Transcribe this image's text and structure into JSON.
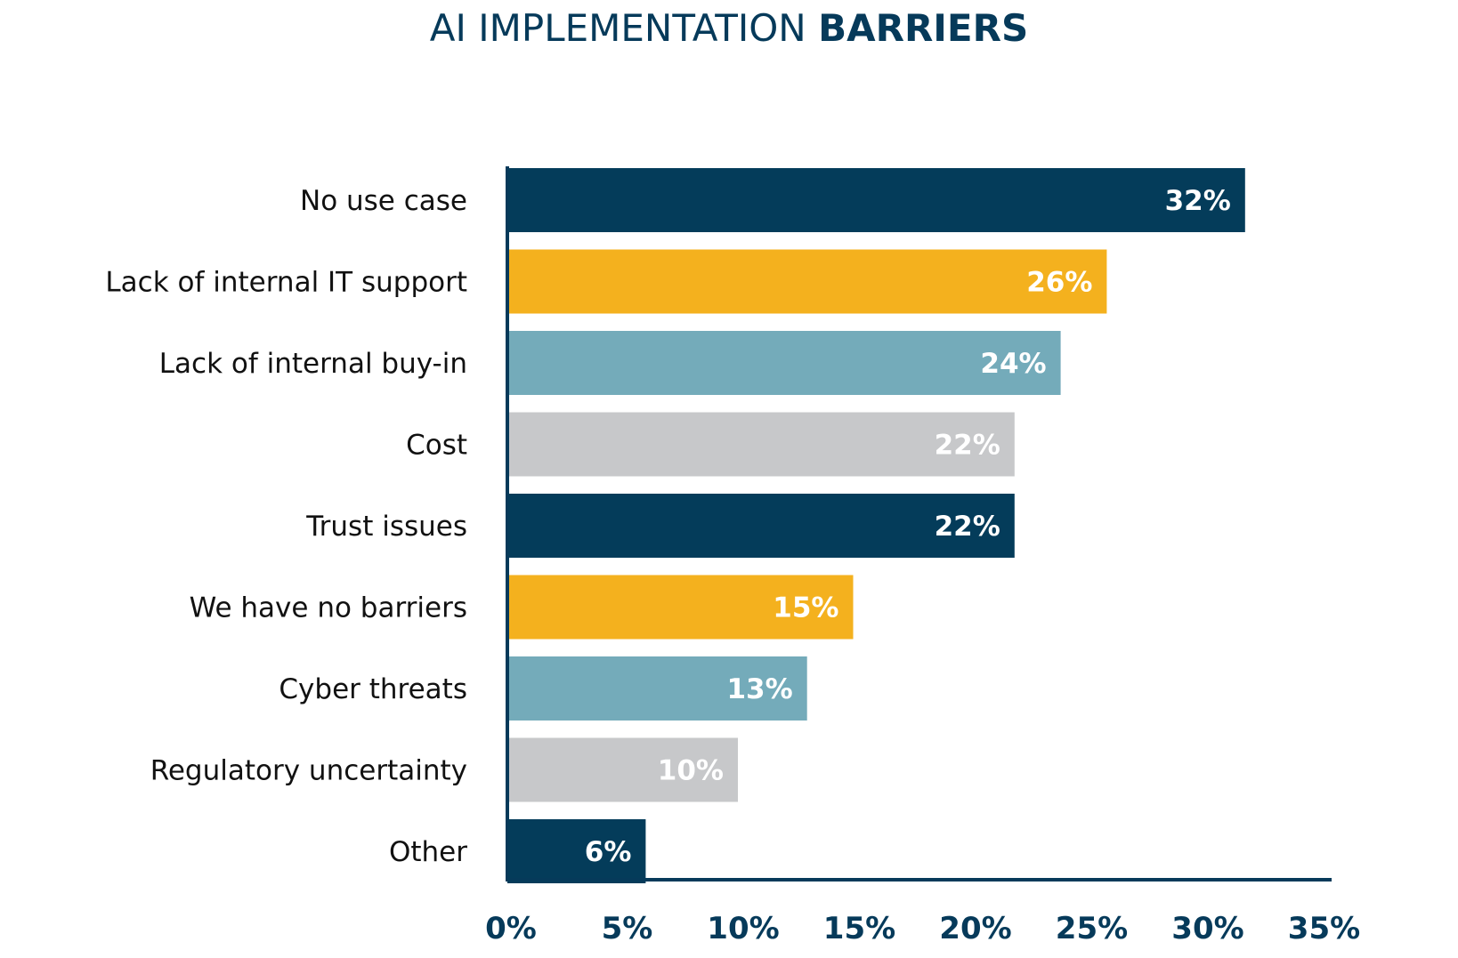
{
  "chart_data": {
    "type": "bar",
    "orientation": "horizontal",
    "title_regular": "AI IMPLEMENTATION ",
    "title_bold": "BARRIERS",
    "categories": [
      "No use case",
      "Lack of internal IT support",
      "Lack of internal buy-in",
      "Cost",
      "Trust issues",
      "We have no barriers",
      "Cyber threats",
      "Regulatory uncertainty",
      "Other"
    ],
    "values": [
      32,
      26,
      24,
      22,
      22,
      15,
      13,
      10,
      6
    ],
    "value_labels": [
      "32%",
      "26%",
      "24%",
      "22%",
      "22%",
      "15%",
      "13%",
      "10%",
      "6%"
    ],
    "bar_colors": [
      "#043c5a",
      "#f4b11e",
      "#74abba",
      "#c7c8ca",
      "#043c5a",
      "#f4b11e",
      "#74abba",
      "#c7c8ca",
      "#043c5a"
    ],
    "xlim": [
      0,
      35
    ],
    "xticks": [
      "0%",
      "5%",
      "10%",
      "15%",
      "20%",
      "25%",
      "30%",
      "35%"
    ],
    "grid": false,
    "axis_color": "#063a5a"
  }
}
